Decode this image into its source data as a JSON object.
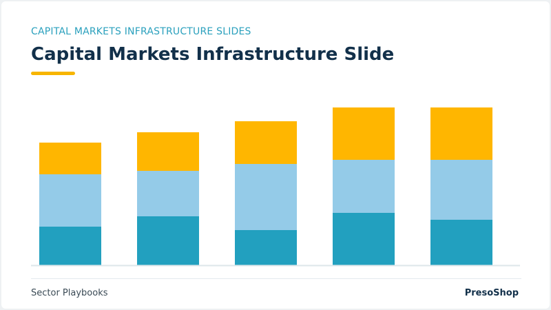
{
  "header": {
    "eyebrow": "CAPITAL MARKETS INFRASTRUCTURE SLIDES",
    "title": "Capital Markets Infrastructure Slide"
  },
  "footer": {
    "left": "Sector Playbooks",
    "right": "PresoShop"
  },
  "colors": {
    "accent": "#f7b500",
    "series_bottom": "#22a0bf",
    "series_middle": "#94cbe8",
    "series_top": "#ffb600",
    "baseline": "#dde6ea"
  },
  "chart_data": {
    "type": "bar",
    "stacked": true,
    "categories": [
      "",
      "",
      "",
      "",
      ""
    ],
    "series": [
      {
        "values": [
          56,
          71,
          51,
          76,
          66
        ],
        "color": "#22a0bf"
      },
      {
        "values": [
          76,
          66,
          96,
          77,
          87
        ],
        "color": "#94cbe8"
      },
      {
        "values": [
          46,
          56,
          62,
          76,
          76
        ],
        "color": "#ffb600"
      }
    ],
    "ylim": [
      0,
      228
    ],
    "grid": false,
    "legend": "none"
  }
}
